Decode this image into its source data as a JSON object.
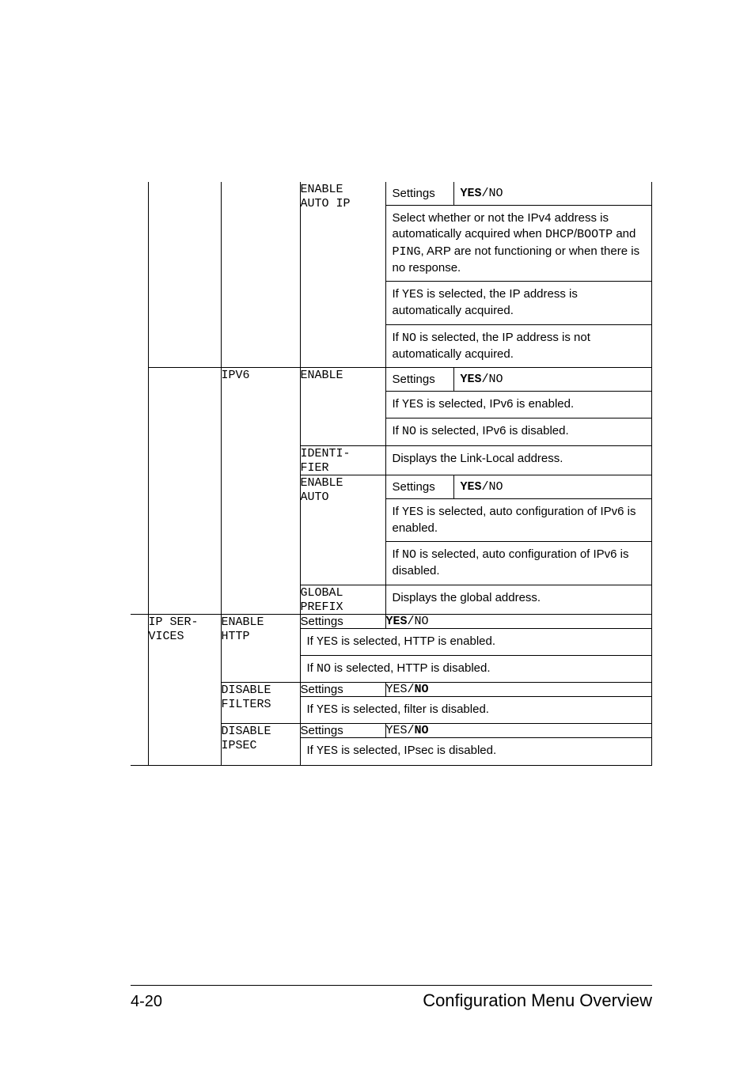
{
  "table": {
    "enable_auto_ip": {
      "option_enable": "ENABLE",
      "option_auto_ip": "AUTO IP",
      "settings_label": "Settings",
      "settings_value_bold": "YES",
      "settings_value_sep": "/",
      "settings_value_normal": "NO",
      "desc1_a": "Select whether or not the IPv4 address is automatically acquired when ",
      "desc1_code1": "DHCP",
      "desc1_b": "/",
      "desc1_code2": "BOOTP",
      "desc1_c": " and ",
      "desc1_code3": "PING",
      "desc1_d": ", ARP are not functioning or when there is no response.",
      "desc2_a": "If ",
      "desc2_code": "YES",
      "desc2_b": " is selected, the IP address is automatically acquired.",
      "desc3_a": "If ",
      "desc3_code": "NO",
      "desc3_b": " is selected, the IP address is not automatically acquired."
    },
    "ipv6": {
      "label": "IPV6",
      "enable": {
        "option": "ENABLE",
        "settings_label": "Settings",
        "settings_bold": "YES",
        "settings_sep": "/",
        "settings_normal": "NO",
        "desc1_a": "If ",
        "desc1_code": "YES",
        "desc1_b": " is selected, IPv6 is enabled.",
        "desc2_a": "If ",
        "desc2_code": "NO",
        "desc2_b": " is selected, IPv6 is disabled."
      },
      "identifier": {
        "option1": "IDENTI-",
        "option2": "FIER",
        "desc": "Displays the Link-Local address."
      },
      "enable_auto": {
        "option1": "ENABLE",
        "option2": "AUTO",
        "settings_label": "Settings",
        "settings_bold": "YES",
        "settings_sep": "/",
        "settings_normal": "NO",
        "desc1_a": "If ",
        "desc1_code": "YES",
        "desc1_b": " is selected, auto configuration of IPv6 is enabled.",
        "desc2_a": "If ",
        "desc2_code": "NO",
        "desc2_b": " is selected, auto configuration of IPv6 is disabled."
      },
      "global_prefix": {
        "option1": "GLOBAL",
        "option2": "PREFIX",
        "desc": "Displays the global address."
      }
    },
    "ip_services": {
      "label1": "IP SER-",
      "label2": "VICES",
      "enable_http": {
        "opt1": "ENABLE",
        "opt2": "HTTP",
        "settings_label": "Settings",
        "settings_bold": "YES",
        "settings_sep": "/",
        "settings_normal": "NO",
        "desc1_a": "If ",
        "desc1_code": "YES",
        "desc1_b": " is selected, HTTP is enabled.",
        "desc2_a": "If ",
        "desc2_code": "NO",
        "desc2_b": " is selected, HTTP is disabled."
      },
      "disable_filters": {
        "opt1": "DISABLE",
        "opt2": "FILTERS",
        "settings_label": "Settings",
        "settings_normal": "YES",
        "settings_sep": "/",
        "settings_bold": "NO",
        "desc_a": "If ",
        "desc_code": "YES",
        "desc_b": " is selected, filter is disabled."
      },
      "disable_ipsec": {
        "opt1": "DISABLE",
        "opt2": "IPSEC",
        "settings_label": "Settings",
        "settings_normal": "YES",
        "settings_sep": "/",
        "settings_bold": "NO",
        "desc_a": "If ",
        "desc_code": "YES",
        "desc_b": " is selected, IPsec is disabled."
      }
    }
  },
  "footer": {
    "page_number": "4-20",
    "title": "Configuration Menu Overview"
  }
}
